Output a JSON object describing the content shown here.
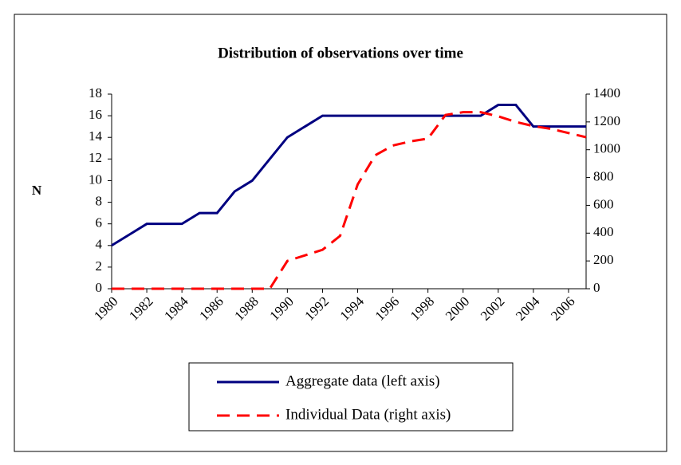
{
  "chart_data": {
    "type": "line",
    "title": "Distribution of observations over time",
    "y_label": "N",
    "x": [
      1980,
      1981,
      1982,
      1983,
      1984,
      1985,
      1986,
      1987,
      1988,
      1989,
      1990,
      1991,
      1992,
      1993,
      1994,
      1995,
      1996,
      1997,
      1998,
      1999,
      2000,
      2001,
      2002,
      2003,
      2004,
      2005,
      2006,
      2007
    ],
    "xlim": [
      1980,
      2007
    ],
    "xticks": [
      1980,
      1982,
      1984,
      1986,
      1988,
      1990,
      1992,
      1994,
      1996,
      1998,
      2000,
      2002,
      2004,
      2006
    ],
    "ylim": [
      0,
      18
    ],
    "yticks": [
      0,
      2,
      4,
      6,
      8,
      10,
      12,
      14,
      16,
      18
    ],
    "y2lim": [
      0,
      1400
    ],
    "y2ticks": [
      0,
      200,
      400,
      600,
      800,
      1000,
      1200,
      1400
    ],
    "series": [
      {
        "name": "Aggregate data (left axis)",
        "color": "#000080",
        "line_style": "solid",
        "values": [
          4,
          5,
          6,
          6,
          6,
          7,
          7,
          9,
          10,
          12,
          14,
          15,
          16,
          16,
          16,
          16,
          16,
          16,
          16,
          16,
          16,
          16,
          17,
          17,
          15,
          15,
          15,
          15
        ]
      },
      {
        "name": "Individual Data (right axis)",
        "color": "#ff0000",
        "line_style": "dashed",
        "axis": "y2",
        "values": [
          0,
          0,
          0,
          0,
          0,
          0,
          0,
          0,
          0,
          0,
          200,
          240,
          280,
          380,
          750,
          960,
          1030,
          1060,
          1080,
          1250,
          1270,
          1270,
          1240,
          1200,
          1170,
          1150,
          1120,
          1090
        ]
      }
    ]
  }
}
